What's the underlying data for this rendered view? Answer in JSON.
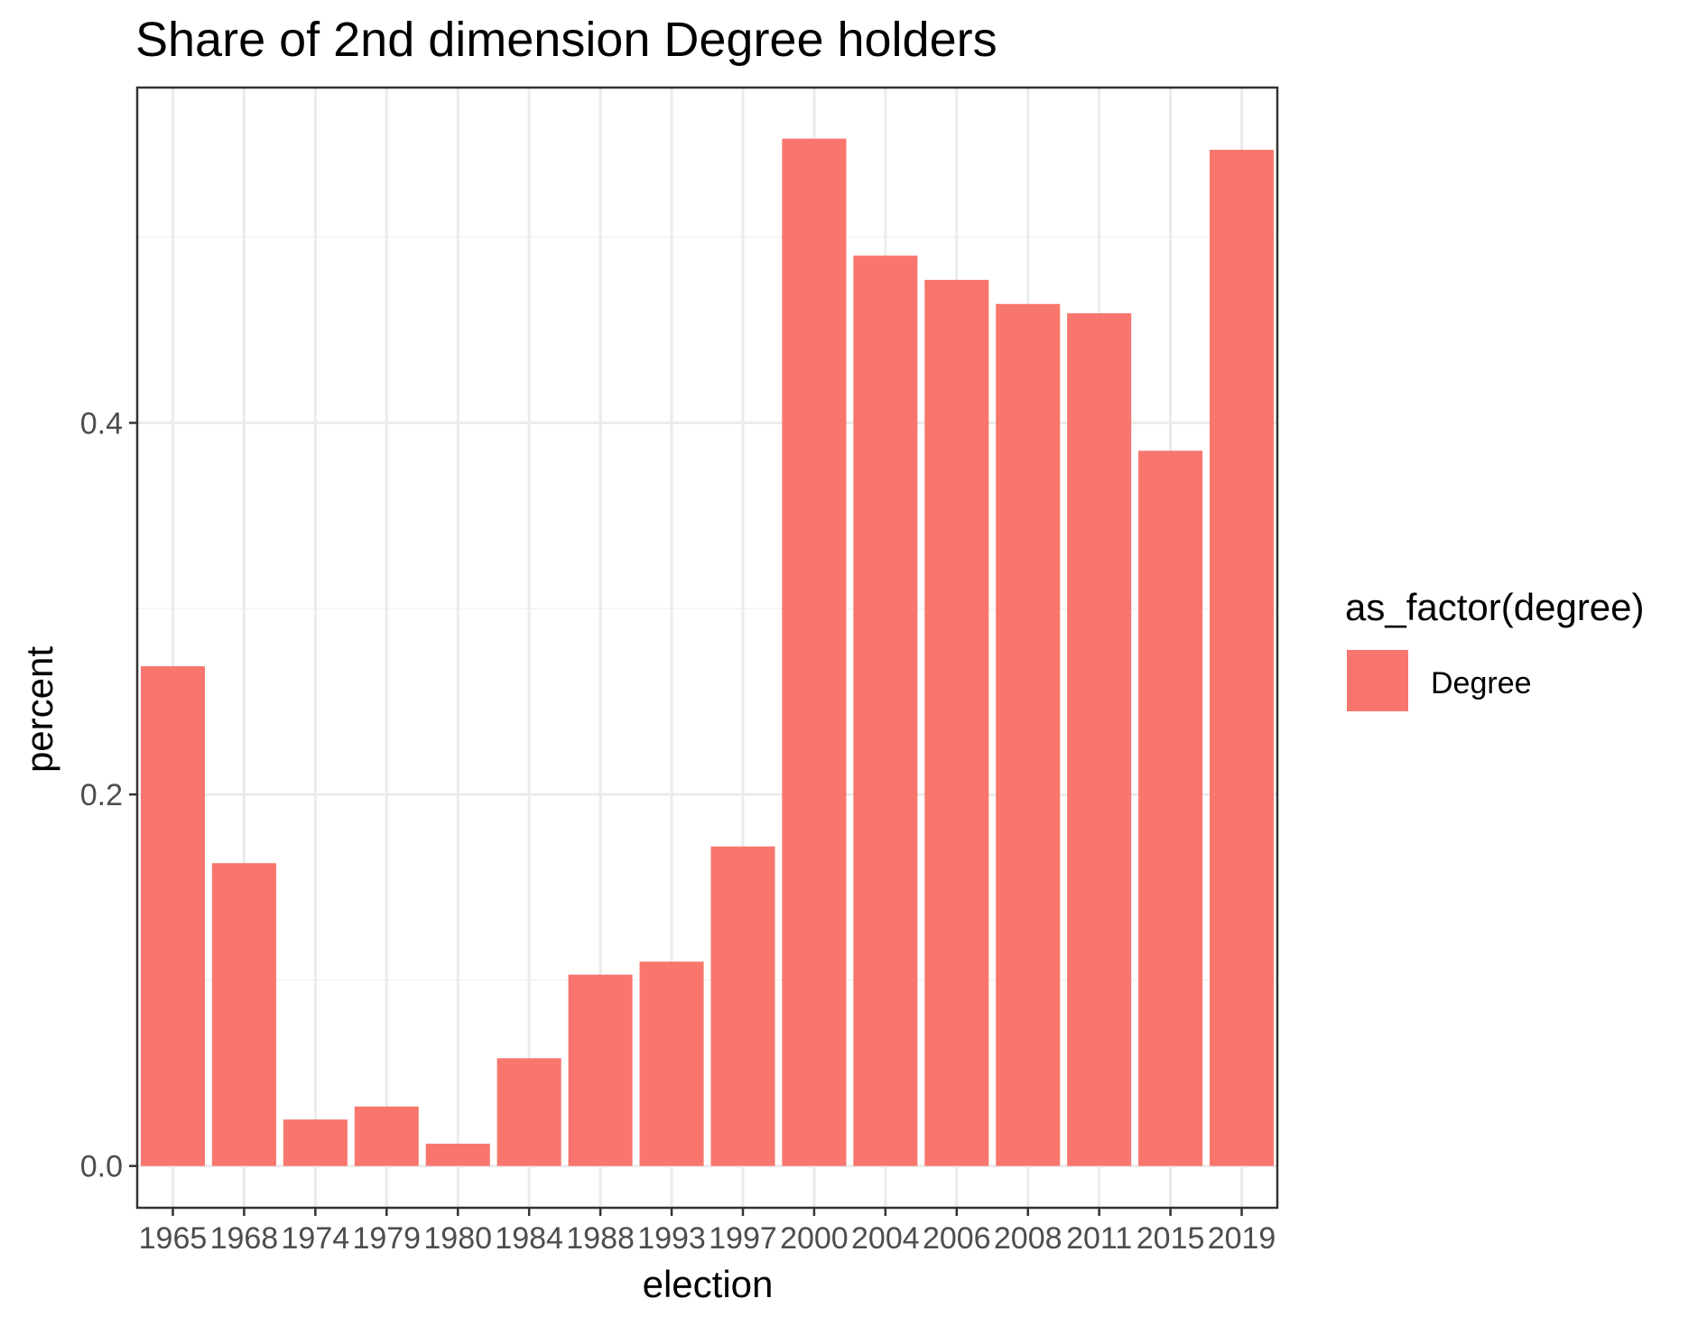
{
  "chart_data": {
    "type": "bar",
    "title": "Share of 2nd dimension Degree holders",
    "xlabel": "election",
    "ylabel": "percent",
    "categories": [
      "1965",
      "1968",
      "1974",
      "1979",
      "1980",
      "1984",
      "1988",
      "1993",
      "1997",
      "2000",
      "2004",
      "2006",
      "2008",
      "2011",
      "2015",
      "2019"
    ],
    "series": [
      {
        "name": "Degree",
        "values": [
          0.269,
          0.163,
          0.025,
          0.032,
          0.012,
          0.058,
          0.103,
          0.11,
          0.172,
          0.553,
          0.49,
          0.477,
          0.464,
          0.459,
          0.385,
          0.547
        ]
      }
    ],
    "yticks": [
      0.0,
      0.2,
      0.4
    ],
    "ytick_labels": [
      "0.0",
      "0.2",
      "0.4"
    ],
    "ylim": [
      -0.0225,
      0.5805
    ],
    "grid": true,
    "legend": {
      "title": "as_factor(degree)",
      "position": "right",
      "entries": [
        "Degree"
      ]
    },
    "colors": {
      "bar": "#F8766D",
      "panel_border": "#333333",
      "grid_major": "#EBEBEB",
      "grid_minor": "#F3F3F3",
      "tick_mark": "#333333"
    }
  }
}
